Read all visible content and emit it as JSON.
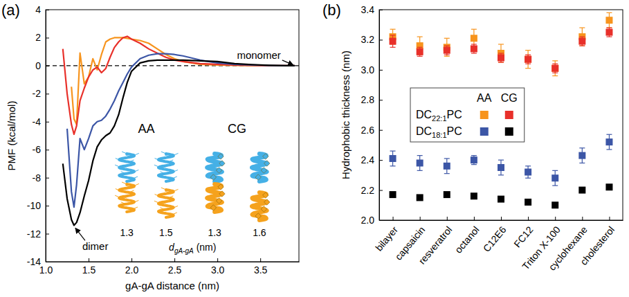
{
  "chart_data": [
    {
      "type": "line",
      "panel_label": "(a)",
      "x_label": "gA-gA distance (nm)",
      "y_label": "PMF (kcal/mol)",
      "x": [
        1.2,
        1.25,
        1.3,
        1.33,
        1.36,
        1.4,
        1.45,
        1.5,
        1.55,
        1.6,
        1.65,
        1.7,
        1.75,
        1.8,
        1.85,
        1.9,
        1.95,
        2.0,
        2.1,
        2.2,
        2.3,
        2.4,
        2.5,
        2.6,
        2.8,
        3.0,
        3.2,
        3.4,
        3.6,
        3.8,
        3.9
      ],
      "series": [
        {
          "color": "#f7941d",
          "values": [
            null,
            null,
            -1.5,
            -3.8,
            -4.2,
            0.9,
            -1.3,
            -0.8,
            0.5,
            -0.3,
            0.8,
            1.7,
            1.9,
            2.0,
            2.0,
            2.0,
            1.95,
            1.9,
            1.8,
            1.6,
            1.2,
            0.8,
            0.5,
            0.3,
            0.1,
            0.05,
            0.02,
            0,
            0,
            0,
            0
          ]
        },
        {
          "color": "#e8302a",
          "values": [
            1.2,
            -2,
            -4.2,
            -4.9,
            -4.3,
            -2.5,
            -1.6,
            -0.8,
            -0.3,
            -0.1,
            -0.5,
            -0.2,
            0.6,
            1.3,
            1.7,
            2.0,
            2.1,
            1.9,
            1.6,
            1.2,
            0.9,
            0.6,
            0.4,
            0.3,
            0.15,
            0.1,
            0.05,
            0.02,
            0,
            0,
            0
          ]
        },
        {
          "color": "#3c56a6",
          "values": [
            null,
            -4.5,
            -9,
            -10.1,
            -8.5,
            -5.2,
            -6.0,
            -5.2,
            -4.3,
            -4.0,
            -3.9,
            -3.6,
            -3.1,
            -2.5,
            -1.8,
            -1.2,
            -0.6,
            -0.1,
            0.5,
            0.75,
            0.85,
            0.85,
            0.8,
            0.7,
            0.4,
            0.2,
            0.1,
            0.05,
            0.02,
            0,
            0
          ]
        },
        {
          "color": "#000000",
          "values": [
            -7,
            -9.5,
            -11,
            -11.4,
            -11.2,
            -10.5,
            -9.3,
            -8.2,
            -6.8,
            -5.8,
            -5.3,
            -5.0,
            -4.8,
            -4.3,
            -3.5,
            -2.3,
            -1.2,
            -0.4,
            0.2,
            0.35,
            0.4,
            0.4,
            0.4,
            0.4,
            0.35,
            0.3,
            0.15,
            0.08,
            0.03,
            0,
            0
          ]
        }
      ],
      "xlim": [
        1.0,
        3.95
      ],
      "xticks": [
        {
          "value": 1,
          "label": "1.0"
        },
        1.5,
        {
          "value": 2,
          "label": "2.0"
        },
        2.5,
        {
          "value": 3,
          "label": "3.0"
        },
        3.5
      ],
      "ylim": [
        -14,
        4
      ],
      "yticks": [
        -14,
        -12,
        -10,
        -8,
        -6,
        -4,
        -2,
        0,
        2,
        4
      ],
      "hline": {
        "value": 0,
        "line_style": "dashed"
      },
      "annotations": [
        {
          "text": "monomer",
          "x": 3.9,
          "y": 0
        },
        {
          "text": "dimer",
          "x": 1.33,
          "y": -11.4
        }
      ],
      "inset": {
        "groups": [
          {
            "label": "AA",
            "distances": [
              1.3,
              1.5
            ]
          },
          {
            "label": "CG",
            "distances": [
              1.3,
              1.6
            ]
          }
        ],
        "distance_label": {
          "symbol": "d",
          "subscript": "gA-gA",
          "unit": "(nm)"
        }
      }
    },
    {
      "type": "scatter",
      "panel_label": "(b)",
      "y_label": "Hydrophobic thickness (nm)",
      "categories": [
        "bilayer",
        "capsaicin",
        "resveratrol",
        "octanol",
        "C12E6",
        "FC12",
        "Triton X-100",
        "cyclohexane",
        "cholesterol"
      ],
      "series": [
        {
          "lipid": "DC22:1PC",
          "model": "AA",
          "color": "#f7941d",
          "marker": "square",
          "values": [
            3.22,
            3.16,
            3.15,
            3.21,
            3.11,
            3.07,
            3.01,
            3.22,
            3.33
          ],
          "errors": [
            0.05,
            0.06,
            0.06,
            0.06,
            0.06,
            0.06,
            0.05,
            0.06,
            0.05
          ]
        },
        {
          "lipid": "DC22:1PC",
          "model": "CG",
          "color": "#e8302a",
          "marker": "square",
          "values": [
            3.19,
            3.12,
            3.13,
            3.14,
            3.08,
            3.07,
            3.01,
            3.19,
            3.25
          ],
          "errors": [
            0.04,
            0.03,
            0.03,
            0.03,
            0.03,
            0.03,
            0.03,
            0.03,
            0.03
          ]
        },
        {
          "lipid": "DC18:1PC",
          "model": "AA",
          "color": "#3c56a6",
          "marker": "square",
          "values": [
            2.41,
            2.38,
            2.36,
            2.4,
            2.35,
            2.32,
            2.28,
            2.43,
            2.52
          ],
          "errors": [
            0.05,
            0.05,
            0.05,
            0.03,
            0.05,
            0.04,
            0.05,
            0.05,
            0.05
          ]
        },
        {
          "lipid": "DC18:1PC",
          "model": "CG",
          "color": "#000000",
          "marker": "square",
          "values": [
            2.17,
            2.15,
            2.17,
            2.16,
            2.14,
            2.12,
            2.1,
            2.2,
            2.22
          ],
          "errors": [
            0.01,
            0.01,
            0.01,
            0.01,
            0.01,
            0.01,
            0.01,
            0.01,
            0.01
          ]
        }
      ],
      "ylim": [
        2.0,
        3.4
      ],
      "yticks": [
        {
          "value": 2,
          "label": "2.0"
        },
        2.2,
        2.4,
        2.6,
        2.8,
        {
          "value": 3,
          "label": "3.0"
        },
        3.2,
        3.4
      ],
      "legend": "center-left"
    }
  ]
}
